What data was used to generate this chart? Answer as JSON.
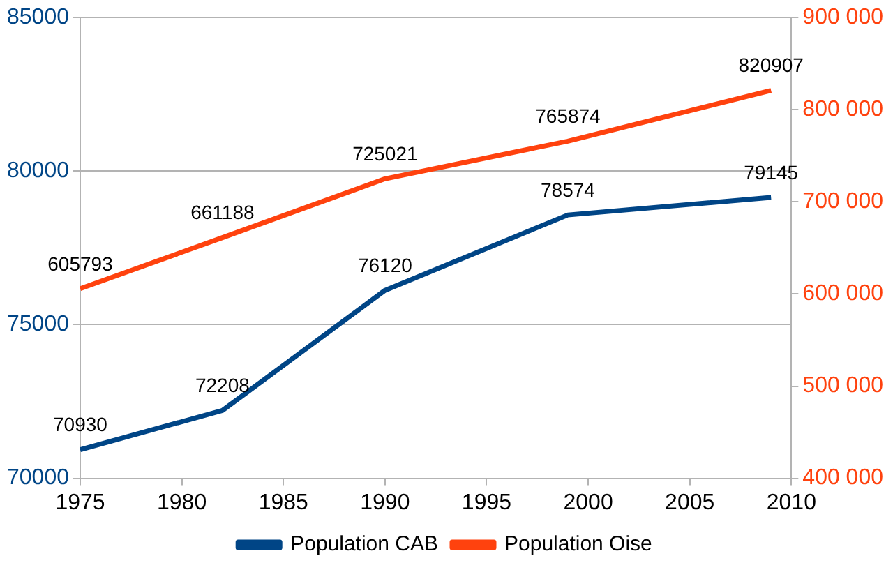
{
  "chart_data": {
    "type": "line",
    "x": [
      1975,
      1982,
      1990,
      1999,
      2009
    ],
    "series": [
      {
        "name": "Population CAB",
        "color": "#004586",
        "values": [
          70930,
          72208,
          76120,
          78574,
          79145
        ]
      },
      {
        "name": "Population Oise",
        "color": "#ff420e",
        "axis": "y2",
        "values": [
          605793,
          661188,
          725021,
          765874,
          820907
        ]
      }
    ],
    "xlim": [
      1975,
      2010
    ],
    "xticks": [
      1975,
      1980,
      1985,
      1990,
      1995,
      2000,
      2005,
      2010
    ],
    "ylim": [
      70000,
      85000
    ],
    "yticks": [
      70000,
      75000,
      80000,
      85000
    ],
    "y2lim": [
      400000,
      900000
    ],
    "y2ticks": [
      {
        "value": 400000,
        "label": "400 000"
      },
      {
        "value": 500000,
        "label": "500 000"
      },
      {
        "value": 600000,
        "label": "600 000"
      },
      {
        "value": 700000,
        "label": "700 000"
      },
      {
        "value": 800000,
        "label": "800 000"
      },
      {
        "value": 900000,
        "label": "900 000"
      }
    ],
    "grid": "y",
    "legend": "bottom",
    "data_labels": true,
    "marker": "none",
    "line_style": "solid"
  }
}
